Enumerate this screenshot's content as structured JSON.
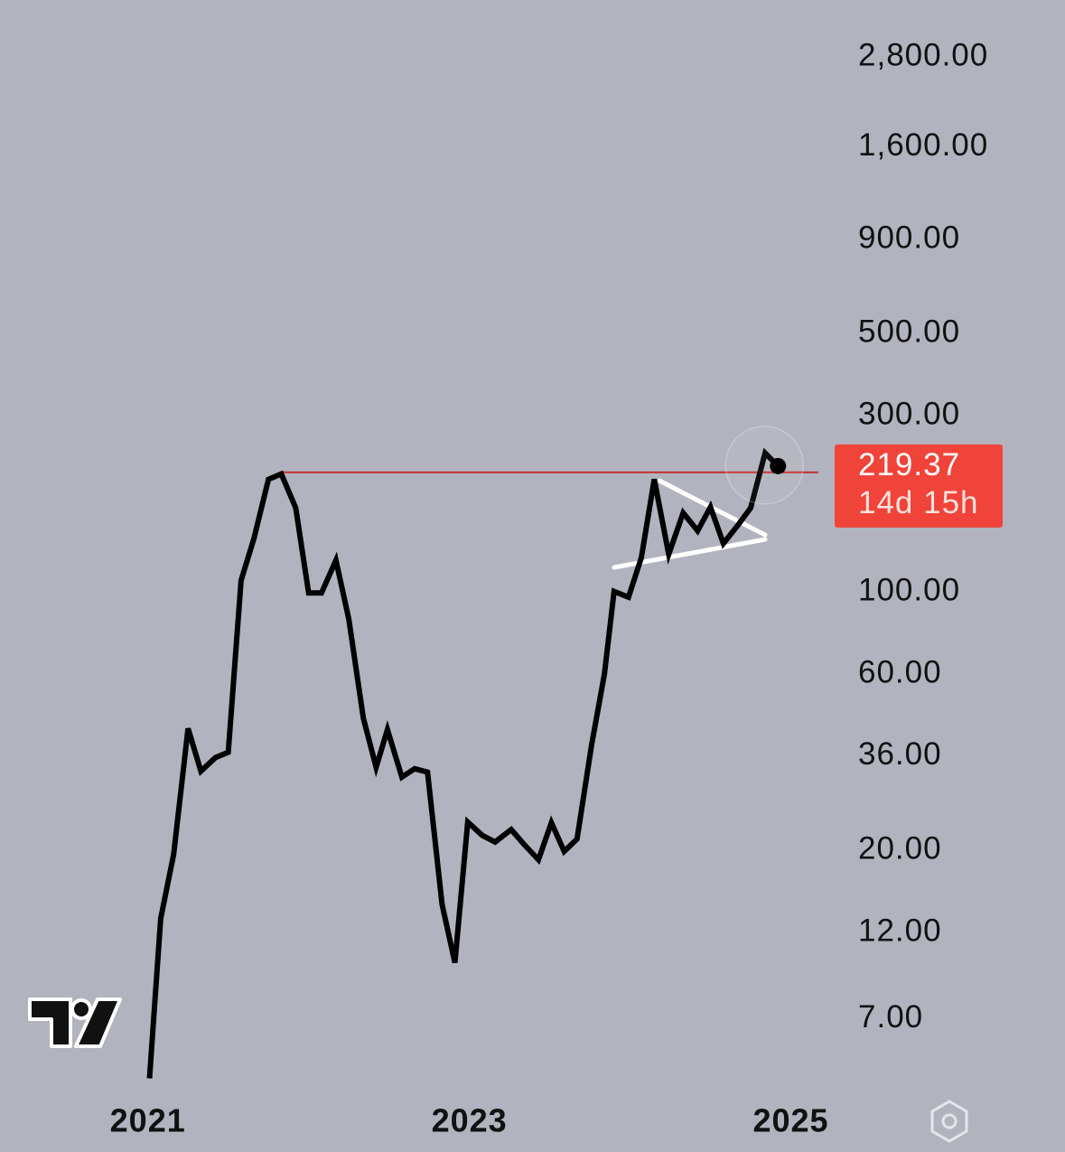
{
  "chart_data": {
    "type": "line",
    "x": [
      2021.01,
      2021.08,
      2021.16,
      2021.25,
      2021.33,
      2021.42,
      2021.5,
      2021.58,
      2021.66,
      2021.75,
      2021.83,
      2021.92,
      2022.0,
      2022.08,
      2022.17,
      2022.25,
      2022.34,
      2022.42,
      2022.49,
      2022.58,
      2022.66,
      2022.74,
      2022.83,
      2022.91,
      2022.99,
      2023.08,
      2023.16,
      2023.26,
      2023.34,
      2023.43,
      2023.51,
      2023.59,
      2023.67,
      2023.76,
      2023.84,
      2023.9,
      2023.99,
      2024.07,
      2024.15,
      2024.24,
      2024.33,
      2024.42,
      2024.5,
      2024.58,
      2024.67,
      2024.75,
      2024.84,
      2024.92
    ],
    "series": [
      {
        "color": "#000000",
        "values": [
          4.84,
          13.1,
          19.5,
          42.8,
          32.8,
          35.7,
          36.9,
          107.6,
          140,
          202,
          209,
          169,
          99.5,
          99.5,
          122,
          84.5,
          45.7,
          33.6,
          42.5,
          31.6,
          33.3,
          32.6,
          14.3,
          9.95,
          23.9,
          22.0,
          21.1,
          22.8,
          20.8,
          18.9,
          23.8,
          19.9,
          21.5,
          38.6,
          60,
          100.5,
          97,
          124,
          202,
          126.6,
          164,
          146.6,
          170,
          135.5,
          151.7,
          169,
          238,
          219.37
        ]
      }
    ],
    "xlim": [
      2020.08,
      2025.25
    ],
    "xticks": [
      2021,
      2023,
      2025
    ],
    "ylim": [
      4.8,
      4000
    ],
    "log_scale": true,
    "yticks": [
      {
        "value": 2800,
        "label": "2,800.00"
      },
      {
        "value": 1600,
        "label": "1,600.00"
      },
      {
        "value": 900,
        "label": "900.00"
      },
      {
        "value": 500,
        "label": "500.00"
      },
      {
        "value": 300,
        "label": "300.00"
      },
      {
        "value": 100,
        "label": "100.00"
      },
      {
        "value": 60,
        "label": "60.00"
      },
      {
        "value": 36,
        "label": "36.00"
      },
      {
        "value": 20,
        "label": "20.00"
      },
      {
        "value": 12,
        "label": "12.00"
      },
      {
        "value": 7,
        "label": "7.00"
      }
    ],
    "resistance": {
      "value": 211,
      "x": 2021.83,
      "color": "#c62f2f"
    },
    "price_label": {
      "countdown": "14d 15h",
      "color": "#f0433a"
    }
  }
}
